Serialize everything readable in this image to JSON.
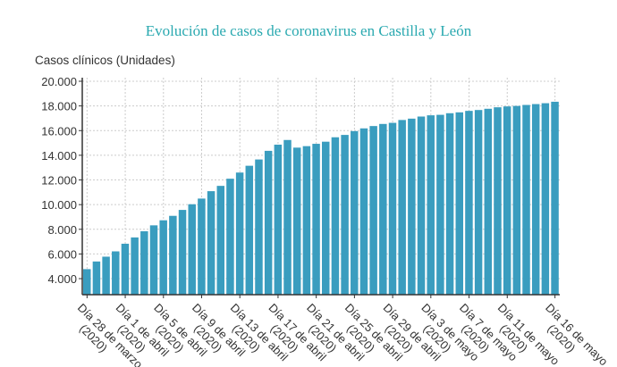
{
  "chart_data": {
    "type": "bar",
    "title": "Evolución de casos de coronavirus en Castilla y León",
    "ylabel": "Casos clínicos (Unidades)",
    "xlabel": "",
    "ylim": [
      2700,
      20000
    ],
    "yticks": [
      "4.000",
      "6.000",
      "8.000",
      "10.000",
      "12.000",
      "14.000",
      "16.000",
      "18.000",
      "20.000"
    ],
    "ytick_values": [
      4000,
      6000,
      8000,
      10000,
      12000,
      14000,
      16000,
      18000,
      20000
    ],
    "grid": true,
    "bar_color": "#3a9dbf",
    "x_ticks": [
      {
        "index": 0,
        "label": "Día 28 de marzo",
        "year": "(2020)"
      },
      {
        "index": 4,
        "label": "Día 1 de abril",
        "year": "(2020)"
      },
      {
        "index": 8,
        "label": "Día 5 de abril",
        "year": "(2020)"
      },
      {
        "index": 12,
        "label": "Día 9 de abril",
        "year": "(2020)"
      },
      {
        "index": 16,
        "label": "Día 13 de abril",
        "year": "(2020)"
      },
      {
        "index": 20,
        "label": "Día 17 de abril",
        "year": "(2020)"
      },
      {
        "index": 24,
        "label": "Día 21 de abril",
        "year": "(2020)"
      },
      {
        "index": 28,
        "label": "Día 25 de abril",
        "year": "(2020)"
      },
      {
        "index": 32,
        "label": "Día 29 de abril",
        "year": "(2020)"
      },
      {
        "index": 36,
        "label": "Día 3 de mayo",
        "year": "(2020)"
      },
      {
        "index": 40,
        "label": "Día 7 de mayo",
        "year": "(2020)"
      },
      {
        "index": 44,
        "label": "Día 11 de mayo",
        "year": "(2020)"
      },
      {
        "index": 49,
        "label": "Día 16 de mayo",
        "year": "(2020)"
      }
    ],
    "values": [
      4770,
      5390,
      5780,
      6210,
      6830,
      7340,
      7840,
      8320,
      8730,
      9090,
      9570,
      10030,
      10490,
      11090,
      11520,
      12100,
      12600,
      13150,
      13660,
      14360,
      14860,
      15240,
      14620,
      14740,
      14930,
      15100,
      15460,
      15650,
      15960,
      16180,
      16370,
      16540,
      16630,
      16860,
      16970,
      17140,
      17240,
      17280,
      17410,
      17480,
      17600,
      17670,
      17770,
      17890,
      17960,
      18000,
      18080,
      18150,
      18220,
      18340
    ]
  }
}
